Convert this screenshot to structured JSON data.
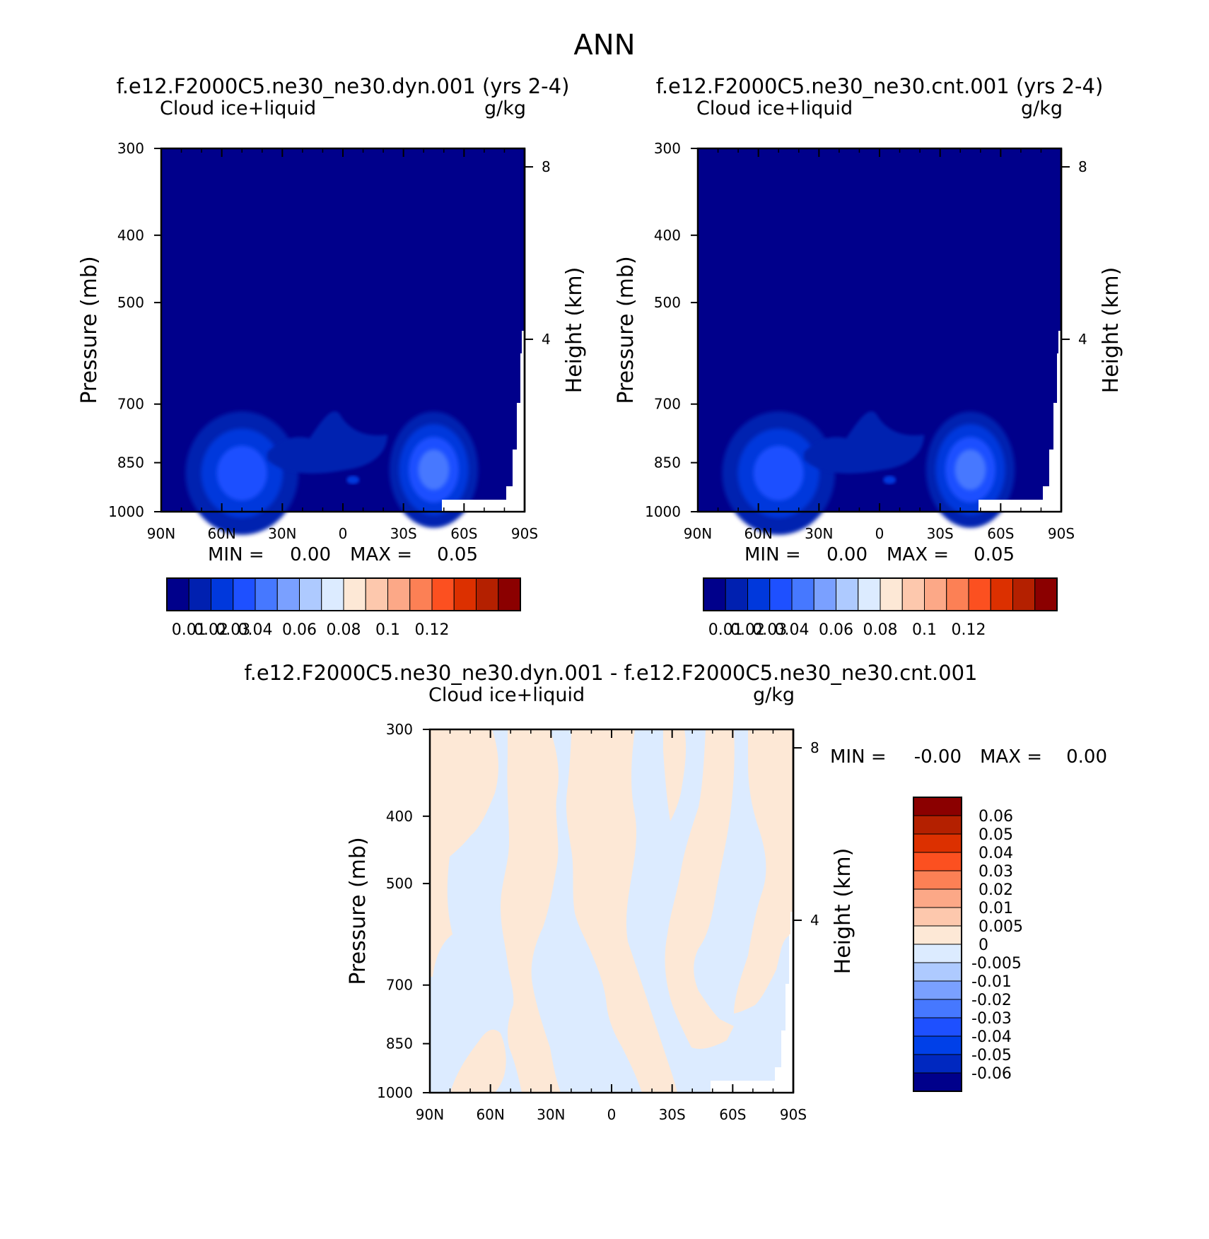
{
  "figure": {
    "title": "ANN"
  },
  "axes_common": {
    "ylabel": "Pressure (mb)",
    "y2label": "Height (km)",
    "panel_left_label": "Cloud ice+liquid",
    "panel_right_label": "g/kg",
    "pressure_ticks": [
      "300",
      "400",
      "500",
      "700",
      "850",
      "1000"
    ],
    "height_ticks": [
      "8",
      "4"
    ],
    "lat_ticks": [
      "90N",
      "60N",
      "30N",
      "0",
      "30S",
      "60S",
      "90S"
    ]
  },
  "colors": {
    "abs_scale": [
      "#00008b",
      "#0020b0",
      "#0038dc",
      "#1e50ff",
      "#4678ff",
      "#7aa0ff",
      "#aecaff",
      "#dcebff",
      "#fde8d6",
      "#fdc8ad",
      "#fca887",
      "#fc8055",
      "#fc5020",
      "#dc3000",
      "#b42000",
      "#8b0000"
    ],
    "diff_scale": [
      "#00008b",
      "#0028c0",
      "#0040e8",
      "#1e50ff",
      "#4678ff",
      "#7aa0ff",
      "#aecaff",
      "#dcebff",
      "#fde8d6",
      "#fdc8ad",
      "#fca887",
      "#fc8055",
      "#fc5020",
      "#dc3000",
      "#b42000",
      "#8b0000"
    ]
  },
  "panels": [
    {
      "id": "dyn",
      "case_title": "f.e12.F2000C5.ne30_ne30.dyn.001 (yrs 2-4)",
      "min_label": "MIN =",
      "min_value": "0.00",
      "max_label": "MAX =",
      "max_value": "0.05",
      "colorbar_labels": [
        "0.01",
        "0.02",
        "0.03",
        "0.04",
        "0.06",
        "0.08",
        "0.1",
        "0.12"
      ]
    },
    {
      "id": "cnt",
      "case_title": "f.e12.F2000C5.ne30_ne30.cnt.001 (yrs 2-4)",
      "min_label": "MIN =",
      "min_value": "0.00",
      "max_label": "MAX =",
      "max_value": "0.05",
      "colorbar_labels": [
        "0.01",
        "0.02",
        "0.03",
        "0.04",
        "0.06",
        "0.08",
        "0.1",
        "0.12"
      ]
    },
    {
      "id": "diff",
      "case_title": "f.e12.F2000C5.ne30_ne30.dyn.001 - f.e12.F2000C5.ne30_ne30.cnt.001",
      "min_label": "MIN =",
      "min_value": "-0.00",
      "max_label": "MAX =",
      "max_value": "0.00",
      "colorbar_labels": [
        "0.06",
        "0.05",
        "0.04",
        "0.03",
        "0.02",
        "0.01",
        "0.005",
        "0",
        "-0.005",
        "-0.01",
        "-0.02",
        "-0.03",
        "-0.04",
        "-0.05",
        "-0.06"
      ]
    }
  ],
  "chart_data": [
    {
      "type": "heatmap",
      "title": "f.e12.F2000C5.ne30_ne30.dyn.001 (yrs 2-4)",
      "variable": "Cloud ice+liquid",
      "units": "g/kg",
      "x": "latitude",
      "xlim": [
        90,
        -90
      ],
      "y": "pressure",
      "ylim": [
        1000,
        300
      ],
      "yscale": "log",
      "levels": [
        0.01,
        0.02,
        0.03,
        0.04,
        0.06,
        0.08,
        0.1,
        0.12
      ],
      "min": 0.0,
      "max": 0.05,
      "maxima": [
        {
          "lat": 50,
          "p": 880,
          "value": 0.03
        },
        {
          "lat": -45,
          "p": 870,
          "value": 0.05
        },
        {
          "lat": -5,
          "p": 900,
          "value": 0.015
        }
      ]
    },
    {
      "type": "heatmap",
      "title": "f.e12.F2000C5.ne30_ne30.cnt.001 (yrs 2-4)",
      "variable": "Cloud ice+liquid",
      "units": "g/kg",
      "x": "latitude",
      "xlim": [
        90,
        -90
      ],
      "y": "pressure",
      "ylim": [
        1000,
        300
      ],
      "yscale": "log",
      "levels": [
        0.01,
        0.02,
        0.03,
        0.04,
        0.06,
        0.08,
        0.1,
        0.12
      ],
      "min": 0.0,
      "max": 0.05,
      "maxima": [
        {
          "lat": 50,
          "p": 880,
          "value": 0.03
        },
        {
          "lat": -45,
          "p": 870,
          "value": 0.05
        },
        {
          "lat": -5,
          "p": 900,
          "value": 0.015
        }
      ]
    },
    {
      "type": "heatmap",
      "title": "f.e12.F2000C5.ne30_ne30.dyn.001 - f.e12.F2000C5.ne30_ne30.cnt.001",
      "variable": "Cloud ice+liquid",
      "units": "g/kg",
      "x": "latitude",
      "xlim": [
        90,
        -90
      ],
      "y": "pressure",
      "ylim": [
        1000,
        300
      ],
      "yscale": "log",
      "levels": [
        -0.06,
        -0.05,
        -0.04,
        -0.03,
        -0.02,
        -0.01,
        -0.005,
        0,
        0.005,
        0.01,
        0.02,
        0.03,
        0.04,
        0.05,
        0.06
      ],
      "min": -0.0,
      "max": 0.0
    }
  ]
}
